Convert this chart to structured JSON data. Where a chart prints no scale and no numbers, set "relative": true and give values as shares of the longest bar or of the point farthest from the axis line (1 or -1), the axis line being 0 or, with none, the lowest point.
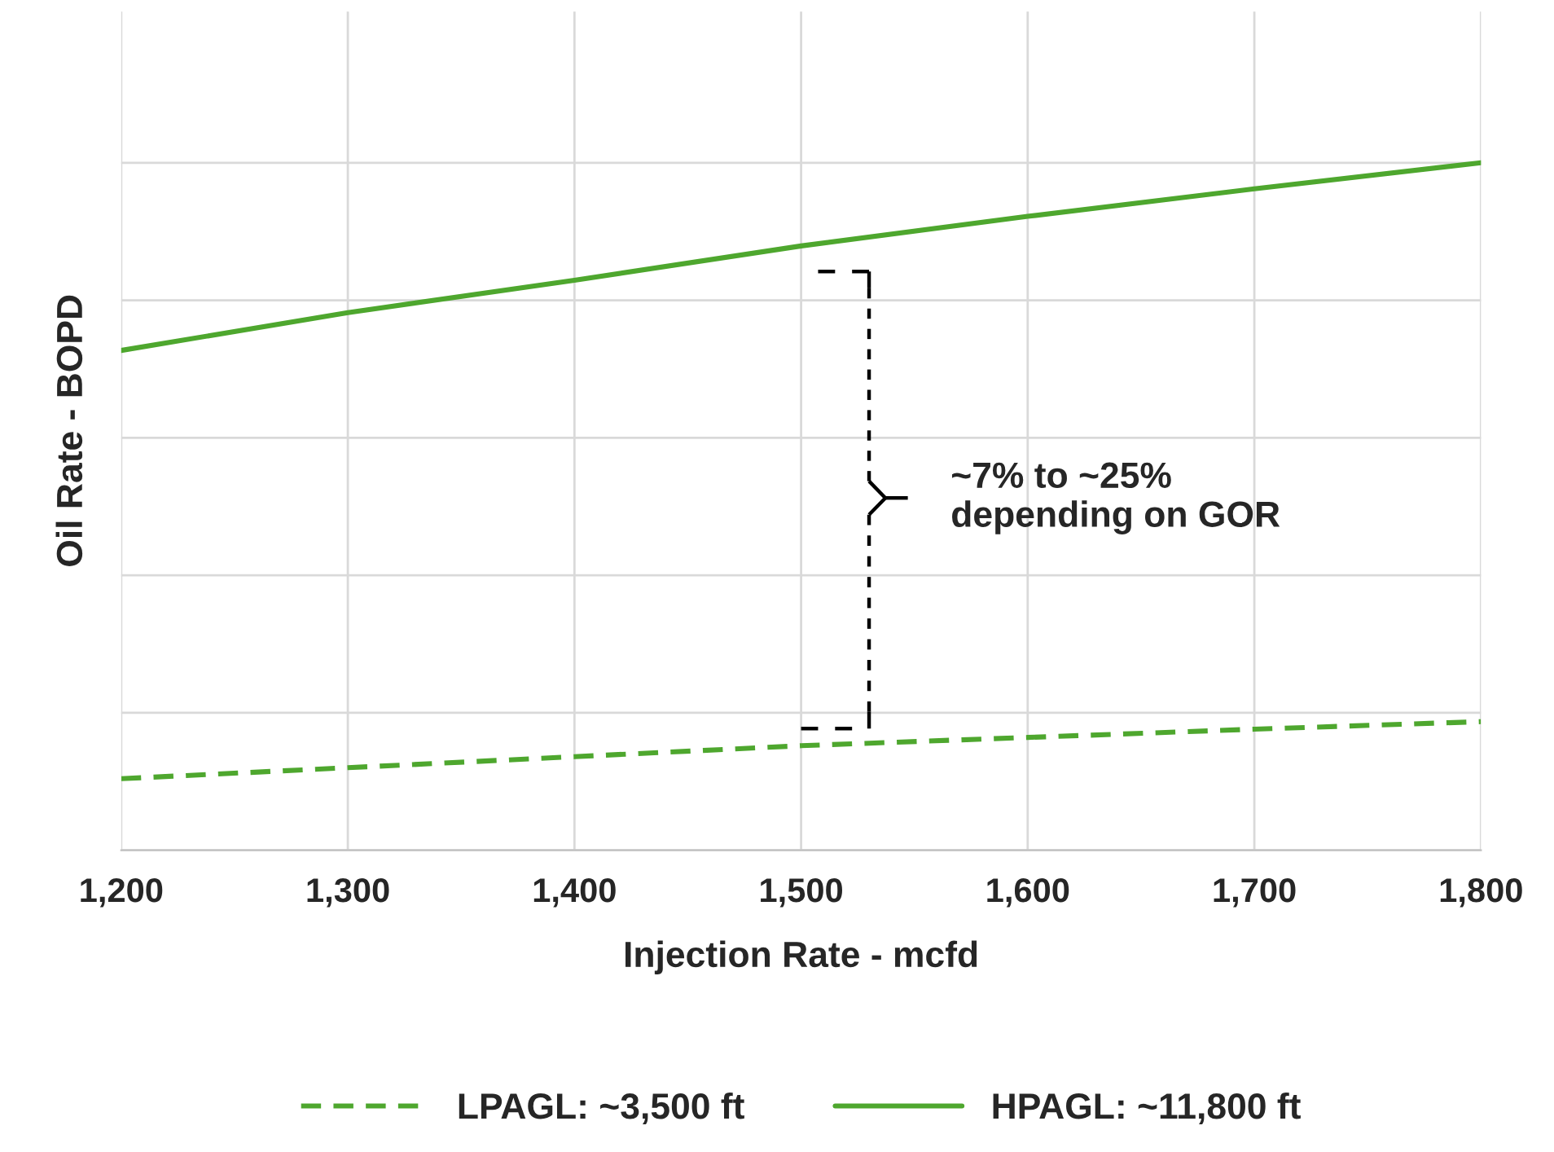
{
  "chart_data": {
    "type": "line",
    "relative": true,
    "xlabel": "Injection Rate - mcfd",
    "ylabel": "Oil Rate - BOPD",
    "x": [
      1200,
      1300,
      1400,
      1500,
      1600,
      1700,
      1800
    ],
    "xlim": [
      1200,
      1800
    ],
    "xticks": [
      {
        "value": 1200,
        "label": "1,200"
      },
      {
        "value": 1300,
        "label": "1,300"
      },
      {
        "value": 1400,
        "label": "1,400"
      },
      {
        "value": 1500,
        "label": "1,500"
      },
      {
        "value": 1600,
        "label": "1,600"
      },
      {
        "value": 1700,
        "label": "1,700"
      },
      {
        "value": 1800,
        "label": "1,800"
      }
    ],
    "series": [
      {
        "name": "LPAGL: ~3,500 ft",
        "color": "#4ea72e",
        "line_style": "dashed",
        "values": [
          0.104,
          0.12,
          0.136,
          0.152,
          0.164,
          0.176,
          0.187
        ]
      },
      {
        "name": "HPAGL: ~11,800 ft",
        "color": "#4ea72e",
        "line_style": "solid",
        "values": [
          0.727,
          0.782,
          0.829,
          0.879,
          0.922,
          0.962,
          1.0
        ]
      }
    ],
    "annotations": [
      "~7% to ~25%\ndepending on GOR"
    ],
    "grid": true,
    "legend": "bottom",
    "tick_labels": "x",
    "marker": "none"
  }
}
